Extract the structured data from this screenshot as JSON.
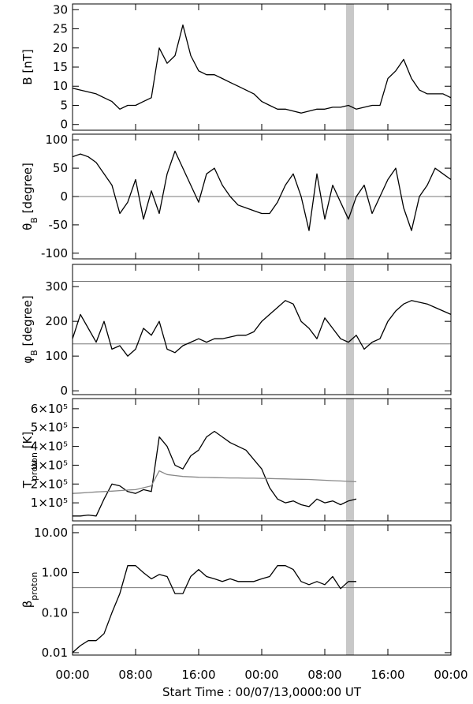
{
  "chart_data": [
    {
      "type": "line",
      "ylabel": [
        "B [nT]"
      ],
      "x": [
        0,
        1,
        2,
        3,
        4,
        5,
        6,
        7,
        8,
        9,
        10,
        11,
        12,
        13,
        14,
        15,
        16,
        17,
        18,
        19,
        20,
        21,
        22,
        23,
        24,
        25,
        26,
        27,
        28,
        29,
        30,
        31,
        32,
        33,
        34,
        35,
        36,
        37,
        38,
        39,
        40,
        41,
        42,
        43,
        44,
        45,
        46,
        47,
        48
      ],
      "series": [
        {
          "color": "#000000",
          "values": [
            9.5,
            9,
            8.5,
            8,
            7,
            6,
            4,
            5,
            5,
            6,
            7,
            20,
            16,
            18,
            26,
            18,
            14,
            13,
            13,
            12,
            11,
            10,
            9,
            8,
            6,
            5,
            4,
            4,
            3.5,
            3,
            3.5,
            4,
            4,
            4.5,
            4.5,
            5,
            4,
            4.5,
            5,
            5,
            12,
            14,
            17,
            12,
            9,
            8,
            8,
            8,
            7
          ]
        }
      ],
      "xlim": [
        0,
        48
      ],
      "xticks": [
        0,
        8,
        16,
        24,
        32,
        40,
        48
      ],
      "ylim": [
        -1.5,
        31.5
      ],
      "yticks": [
        0,
        5,
        10,
        15,
        20,
        25,
        30
      ],
      "highlight_xlim": [
        34.7,
        35.7
      ],
      "hlines": []
    },
    {
      "type": "line",
      "ylabel": [
        "θ",
        "B",
        " [degree]"
      ],
      "x": [
        0,
        1,
        2,
        3,
        4,
        5,
        6,
        7,
        8,
        9,
        10,
        11,
        12,
        13,
        14,
        15,
        16,
        17,
        18,
        19,
        20,
        21,
        22,
        23,
        24,
        25,
        26,
        27,
        28,
        29,
        30,
        31,
        32,
        33,
        34,
        35,
        36,
        37,
        38,
        39,
        40,
        41,
        42,
        43,
        44,
        45,
        46,
        47,
        48
      ],
      "series": [
        {
          "color": "#000000",
          "values": [
            70,
            75,
            70,
            60,
            40,
            20,
            -30,
            -10,
            30,
            -40,
            10,
            -30,
            40,
            80,
            50,
            20,
            -10,
            40,
            50,
            20,
            0,
            -15,
            -20,
            -25,
            -30,
            -30,
            -10,
            20,
            40,
            0,
            -60,
            40,
            -40,
            20,
            -10,
            -40,
            0,
            20,
            -30,
            0,
            30,
            50,
            -20,
            -60,
            0,
            20,
            50,
            40,
            30
          ]
        }
      ],
      "xlim": [
        0,
        48
      ],
      "xticks": [
        0,
        8,
        16,
        24,
        32,
        40,
        48
      ],
      "ylim": [
        -110,
        110
      ],
      "yticks": [
        -100,
        -50,
        0,
        50,
        100
      ],
      "highlight_xlim": [
        34.7,
        35.7
      ],
      "hlines": [
        0
      ]
    },
    {
      "type": "line",
      "ylabel": [
        "φ",
        "B",
        " [degree]"
      ],
      "x": [
        0,
        1,
        2,
        3,
        4,
        5,
        6,
        7,
        8,
        9,
        10,
        11,
        12,
        13,
        14,
        15,
        16,
        17,
        18,
        19,
        20,
        21,
        22,
        23,
        24,
        25,
        26,
        27,
        28,
        29,
        30,
        31,
        32,
        33,
        34,
        35,
        36,
        37,
        38,
        39,
        40,
        41,
        42,
        43,
        44,
        45,
        46,
        47,
        48
      ],
      "series": [
        {
          "color": "#000000",
          "values": [
            150,
            220,
            180,
            140,
            200,
            120,
            130,
            100,
            120,
            180,
            160,
            200,
            120,
            110,
            130,
            140,
            150,
            140,
            150,
            150,
            155,
            160,
            160,
            170,
            200,
            220,
            240,
            260,
            250,
            200,
            180,
            150,
            210,
            180,
            150,
            140,
            160,
            120,
            140,
            150,
            200,
            230,
            250,
            260,
            255,
            250,
            240,
            230,
            220
          ]
        }
      ],
      "xlim": [
        0,
        48
      ],
      "xticks": [
        0,
        8,
        16,
        24,
        32,
        40,
        48
      ],
      "ylim": [
        -11,
        364
      ],
      "yticks": [
        0,
        100,
        200,
        300
      ],
      "highlight_xlim": [
        34.7,
        35.7
      ],
      "hlines": [
        315,
        135
      ]
    },
    {
      "type": "line",
      "ylabel": [
        "T",
        "proton",
        " [K]"
      ],
      "x": [
        0,
        1,
        2,
        3,
        4,
        5,
        6,
        7,
        8,
        9,
        10,
        11,
        12,
        13,
        14,
        15,
        16,
        17,
        18,
        19,
        20,
        21,
        22,
        23,
        24,
        25,
        26,
        27,
        28,
        29,
        30,
        31,
        32,
        33,
        34,
        35,
        36,
        37,
        38,
        39,
        40,
        41,
        42,
        43,
        44,
        45,
        46,
        47,
        48
      ],
      "series": [
        {
          "color": "#000000",
          "values": [
            30000,
            30000,
            35000,
            30000,
            120000,
            200000,
            190000,
            160000,
            150000,
            170000,
            160000,
            450000,
            400000,
            300000,
            280000,
            350000,
            380000,
            450000,
            480000,
            450000,
            420000,
            400000,
            380000,
            330000,
            280000,
            180000,
            120000,
            100000,
            110000,
            90000,
            80000,
            120000,
            100000,
            110000,
            90000,
            110000,
            120000,
            null,
            null,
            null,
            null,
            null,
            null,
            null,
            null,
            null,
            null,
            null,
            null
          ]
        },
        {
          "color": "#888888",
          "values": [
            150000,
            152000,
            155000,
            158000,
            160000,
            162000,
            165000,
            168000,
            170000,
            180000,
            190000,
            270000,
            250000,
            245000,
            240000,
            238000,
            236000,
            235000,
            234000,
            233000,
            232000,
            232000,
            231000,
            231000,
            230000,
            229000,
            228000,
            227000,
            226000,
            225000,
            224000,
            222000,
            220000,
            218000,
            216000,
            214000,
            212000,
            null,
            null,
            null,
            null,
            null,
            null,
            null,
            null,
            null,
            null,
            null,
            null
          ]
        }
      ],
      "xlim": [
        0,
        48
      ],
      "xticks": [
        0,
        8,
        16,
        24,
        32,
        40,
        48
      ],
      "ylim": [
        4000,
        654000
      ],
      "yticks": [
        {
          "value": 100000,
          "label": "1×10⁵"
        },
        {
          "value": 200000,
          "label": "2×10⁵"
        },
        {
          "value": 300000,
          "label": "3×10⁵"
        },
        {
          "value": 400000,
          "label": "4×10⁵"
        },
        {
          "value": 500000,
          "label": "5×10⁵"
        },
        {
          "value": 600000,
          "label": "6×10⁵"
        }
      ],
      "highlight_xlim": [
        34.7,
        35.7
      ],
      "hlines": []
    },
    {
      "type": "line",
      "ylabel": [
        "β",
        "proton"
      ],
      "log_y": true,
      "x": [
        0,
        1,
        2,
        3,
        4,
        5,
        6,
        7,
        8,
        9,
        10,
        11,
        12,
        13,
        14,
        15,
        16,
        17,
        18,
        19,
        20,
        21,
        22,
        23,
        24,
        25,
        26,
        27,
        28,
        29,
        30,
        31,
        32,
        33,
        34,
        35,
        36,
        37,
        38,
        39,
        40,
        41,
        42,
        43,
        44,
        45,
        46,
        47,
        48
      ],
      "series": [
        {
          "color": "#000000",
          "values": [
            0.01,
            0.015,
            0.02,
            0.02,
            0.03,
            0.1,
            0.3,
            1.5,
            1.5,
            1.0,
            0.7,
            0.9,
            0.8,
            0.3,
            0.3,
            0.8,
            1.2,
            0.8,
            0.7,
            0.6,
            0.7,
            0.6,
            0.6,
            0.6,
            0.7,
            0.8,
            1.5,
            1.5,
            1.2,
            0.6,
            0.5,
            0.6,
            0.5,
            0.8,
            0.4,
            0.6,
            0.6,
            null,
            null,
            null,
            null,
            null,
            null,
            null,
            null,
            null,
            null,
            null,
            null
          ]
        }
      ],
      "xlim": [
        0,
        48
      ],
      "xticks": [
        {
          "value": 0,
          "label": "00:00"
        },
        {
          "value": 8,
          "label": "08:00"
        },
        {
          "value": 16,
          "label": "16:00"
        },
        {
          "value": 24,
          "label": "00:00"
        },
        {
          "value": 32,
          "label": "08:00"
        },
        {
          "value": 40,
          "label": "16:00"
        },
        {
          "value": 48,
          "label": "00:00"
        }
      ],
      "xlabel": "Start Time : 00/07/13,0000:00 UT",
      "ylim": [
        0.0087,
        15.7
      ],
      "yticks": [
        {
          "value": 0.01,
          "label": "0.01"
        },
        {
          "value": 0.1,
          "label": "0.10"
        },
        {
          "value": 1,
          "label": "1.00"
        },
        {
          "value": 10,
          "label": "10.00"
        }
      ],
      "highlight_xlim": [
        34.7,
        35.7
      ],
      "hlines": [
        0.42
      ]
    }
  ]
}
